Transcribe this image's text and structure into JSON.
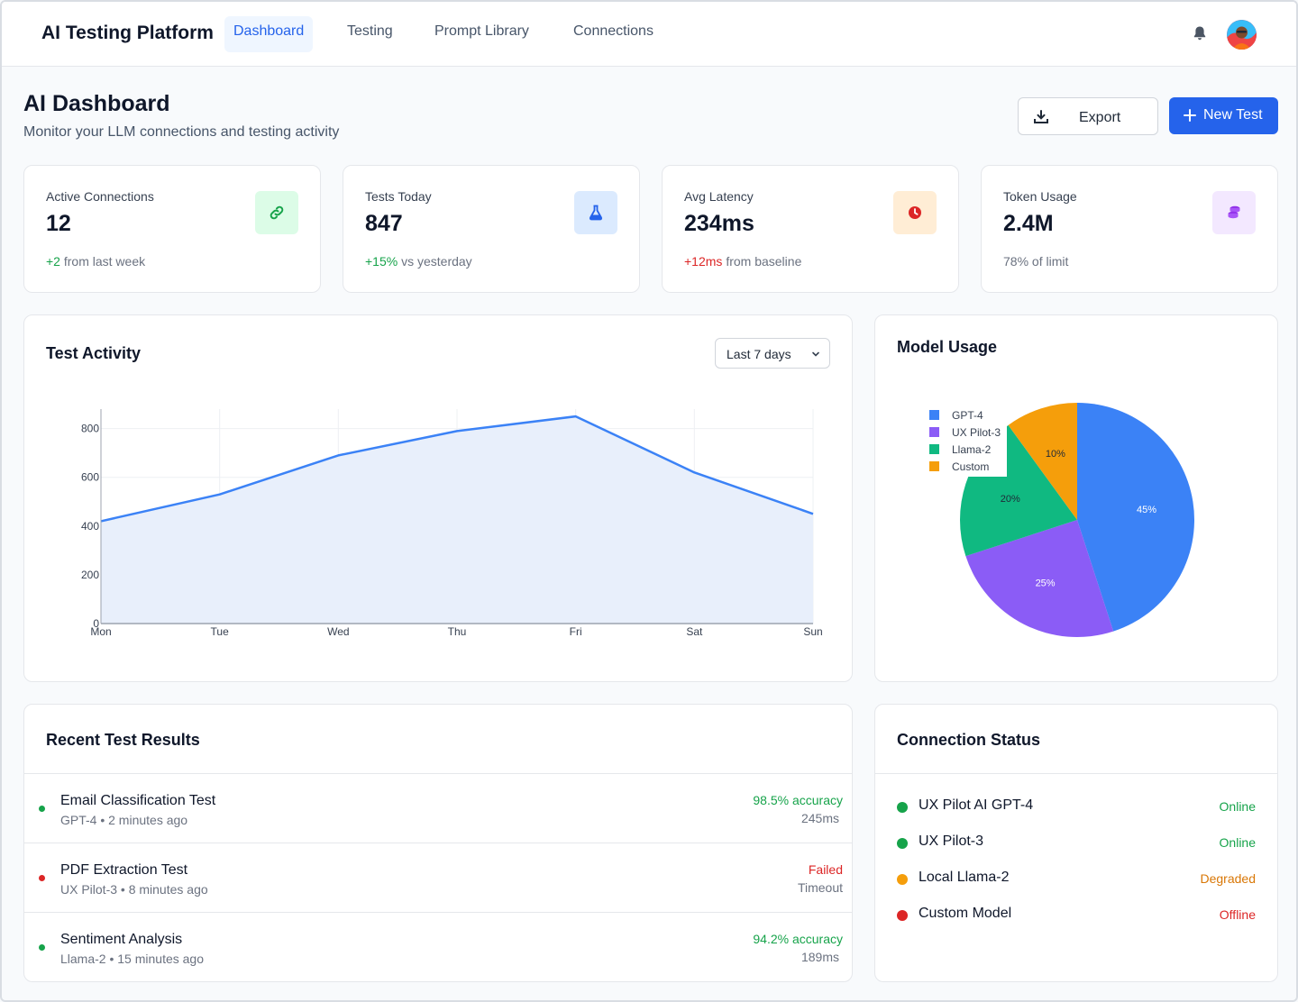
{
  "nav": {
    "brand": "AI Testing Platform",
    "tabs": [
      "Dashboard",
      "Testing",
      "Prompt Library",
      "Connections"
    ],
    "active_tab": "Dashboard"
  },
  "header": {
    "title": "AI Dashboard",
    "subtitle": "Monitor your LLM connections and testing activity",
    "export_label": "Export",
    "new_test_label": "New Test"
  },
  "stats": [
    {
      "label": "Active Connections",
      "value": "12",
      "delta": "+2",
      "delta_note": "from last week",
      "delta_tone": "pos",
      "icon": "link-icon",
      "icon_bg": "#dcfce7",
      "icon_color": "#16a34a"
    },
    {
      "label": "Tests Today",
      "value": "847",
      "delta": "+15%",
      "delta_note": "vs yesterday",
      "delta_tone": "pos",
      "icon": "flask-icon",
      "icon_bg": "#dbeafe",
      "icon_color": "#2563eb"
    },
    {
      "label": "Avg Latency",
      "value": "234ms",
      "delta": "+12ms",
      "delta_note": "from baseline",
      "delta_tone": "neg",
      "icon": "clock-icon",
      "icon_bg": "#ffedd5",
      "icon_color": "#ea580c"
    },
    {
      "label": "Token Usage",
      "value": "2.4M",
      "delta": "",
      "delta_note": "78% of limit",
      "delta_tone": "none",
      "icon": "coins-icon",
      "icon_bg": "#f3e8ff",
      "icon_color": "#9333ea"
    }
  ],
  "activity": {
    "title": "Test Activity",
    "range_label": "Last 7 days"
  },
  "model_usage": {
    "title": "Model Usage"
  },
  "chart_data": [
    {
      "type": "area",
      "title": "Test Activity",
      "categories": [
        "Mon",
        "Tue",
        "Wed",
        "Thu",
        "Fri",
        "Sat",
        "Sun"
      ],
      "values": [
        420,
        530,
        690,
        790,
        850,
        620,
        450
      ],
      "yticks": [
        0,
        200,
        400,
        600,
        800
      ],
      "ylim": [
        0,
        880
      ],
      "line_color": "#3b82f6",
      "fill_color": "#e8effb"
    },
    {
      "type": "pie",
      "title": "Model Usage",
      "labels": [
        "GPT-4",
        "UX Pilot-3",
        "Llama-2",
        "Custom"
      ],
      "values": [
        45,
        25,
        20,
        10
      ],
      "value_labels": [
        "45%",
        "25%",
        "20%",
        "10%"
      ],
      "colors": [
        "#3b82f6",
        "#8b5cf6",
        "#10b981",
        "#f59e0b"
      ],
      "legend_position": "top-left"
    }
  ],
  "recent": {
    "title": "Recent Test Results",
    "rows": [
      {
        "name": "Email Classification Test",
        "meta": "GPT-4 • 2 minutes ago",
        "result": "98.5% accuracy",
        "detail": "245ms",
        "status": "pass"
      },
      {
        "name": "PDF Extraction Test",
        "meta": "UX Pilot-3 • 8 minutes ago",
        "result": "Failed",
        "detail": "Timeout",
        "status": "fail"
      },
      {
        "name": "Sentiment Analysis",
        "meta": "Llama-2 • 15 minutes ago",
        "result": "94.2% accuracy",
        "detail": "189ms",
        "status": "pass"
      }
    ]
  },
  "connections": {
    "title": "Connection Status",
    "items": [
      {
        "name": "UX Pilot AI GPT-4",
        "status": "Online",
        "color": "#16a34a"
      },
      {
        "name": "UX Pilot-3",
        "status": "Online",
        "color": "#16a34a"
      },
      {
        "name": "Local Llama-2",
        "status": "Degraded",
        "color": "#d97706"
      },
      {
        "name": "Custom Model",
        "status": "Offline",
        "color": "#dc2626"
      }
    ]
  },
  "colors": {
    "accent": "#2563eb",
    "pass": "#16a34a",
    "fail": "#dc2626"
  }
}
